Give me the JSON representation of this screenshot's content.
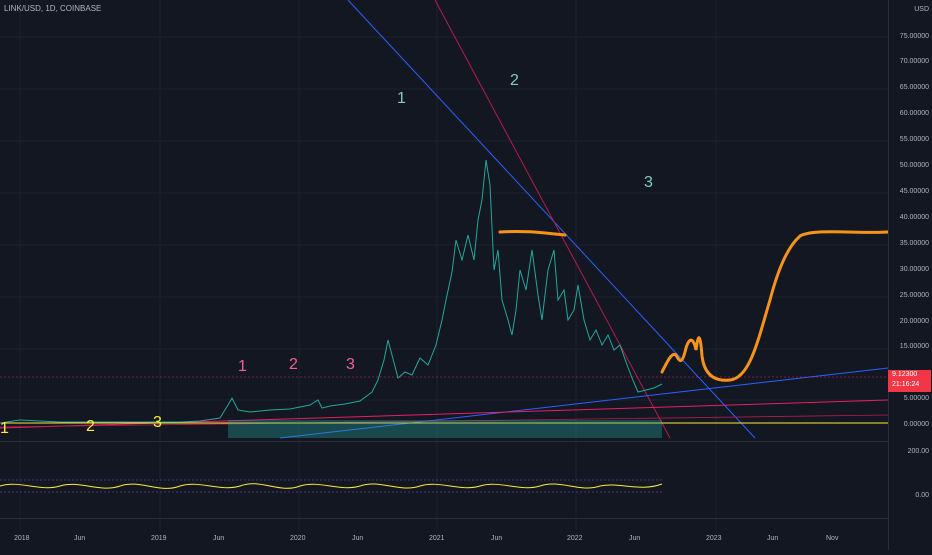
{
  "header": {
    "symbol": "LINK/USD, 1D, COINBASE"
  },
  "price_axis": {
    "currency": "USD",
    "labels": [
      "75.00000",
      "70.00000",
      "65.00000",
      "60.00000",
      "55.00000",
      "50.00000",
      "45.00000",
      "40.00000",
      "35.00000",
      "30.00000",
      "25.00000",
      "20.00000",
      "15.00000",
      "5.00000",
      "0.00000"
    ],
    "osc_labels": [
      "200.00",
      "0.00"
    ],
    "last_price": "9.12300",
    "countdown": "21:16:24"
  },
  "time_axis": [
    "2018",
    "Jun",
    "2019",
    "Jun",
    "2020",
    "Jun",
    "2021",
    "Jun",
    "2022",
    "Jun",
    "2023",
    "Jun",
    "Nov"
  ],
  "wave_labels": [
    {
      "text": "1",
      "color": "#80cbc4"
    },
    {
      "text": "2",
      "color": "#80cbc4"
    },
    {
      "text": "3",
      "color": "#80cbc4"
    },
    {
      "text": "1",
      "color": "#f06292"
    },
    {
      "text": "2",
      "color": "#f06292"
    },
    {
      "text": "3",
      "color": "#f06292"
    },
    {
      "text": "1",
      "color": "#ffeb3b"
    },
    {
      "text": "2",
      "color": "#ffeb3b"
    },
    {
      "text": "3",
      "color": "#ffeb3b"
    }
  ],
  "colors": {
    "up": "#26a69a",
    "down": "#ef5350",
    "projection": "#f7931a",
    "trend_blue": "#2962ff",
    "trend_red": "#b71c4b",
    "support_yellow": "#ffeb3b"
  }
}
